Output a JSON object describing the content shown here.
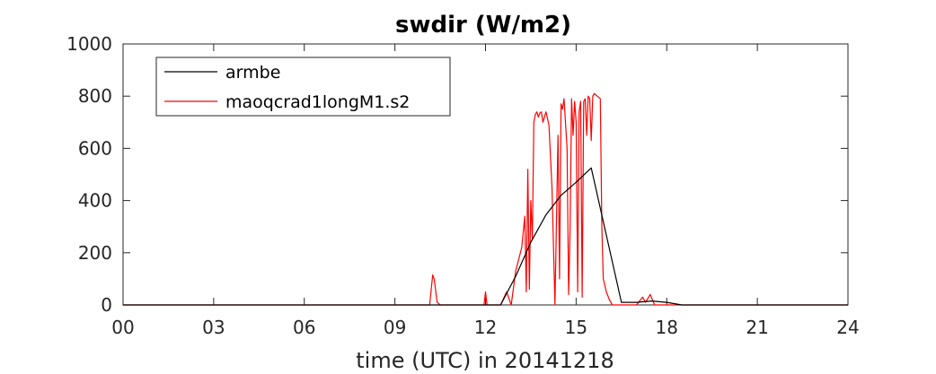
{
  "chart_data": {
    "type": "line",
    "title": "swdir  (W/m2)",
    "xlabel": "time (UTC) in 20141218",
    "ylabel": "",
    "xlim": [
      0,
      24
    ],
    "ylim": [
      0,
      1000
    ],
    "x_ticks": [
      0,
      3,
      6,
      9,
      12,
      15,
      18,
      21,
      24
    ],
    "x_tick_labels": [
      "00",
      "03",
      "06",
      "09",
      "12",
      "15",
      "18",
      "21",
      "24"
    ],
    "y_ticks": [
      0,
      200,
      400,
      600,
      800,
      1000
    ],
    "y_tick_labels": [
      "0",
      "200",
      "400",
      "600",
      "800",
      "1000"
    ],
    "grid": false,
    "legend": "top-left",
    "series": [
      {
        "name": "armbe",
        "color": "#000000",
        "x": [
          0,
          12.5,
          13.0,
          13.5,
          14.0,
          14.5,
          15.0,
          15.5,
          16.5,
          17.0,
          17.5,
          18.0,
          18.5,
          24
        ],
        "y": [
          0,
          0,
          110,
          240,
          345,
          420,
          470,
          525,
          10,
          10,
          15,
          10,
          0,
          0
        ]
      },
      {
        "name": "maoqcrad1longM1.s2",
        "color": "#ff0000",
        "x": [
          0,
          10.15,
          10.25,
          10.3,
          10.4,
          10.5,
          11.95,
          12.0,
          12.05,
          12.5,
          12.7,
          12.85,
          13.0,
          13.2,
          13.3,
          13.35,
          13.4,
          13.45,
          13.5,
          13.55,
          13.6,
          13.65,
          13.7,
          13.75,
          13.8,
          13.85,
          13.9,
          14.0,
          14.1,
          14.2,
          14.3,
          14.4,
          14.45,
          14.5,
          14.55,
          14.6,
          14.7,
          14.75,
          14.8,
          14.85,
          14.9,
          14.95,
          15.0,
          15.05,
          15.1,
          15.15,
          15.2,
          15.25,
          15.3,
          15.35,
          15.4,
          15.45,
          15.5,
          15.55,
          15.6,
          15.7,
          15.8,
          15.85,
          15.9,
          16.0,
          16.1,
          16.2,
          16.5,
          17.0,
          17.2,
          17.3,
          17.45,
          17.6,
          24
        ],
        "y": [
          0,
          0,
          115,
          100,
          10,
          0,
          0,
          50,
          0,
          0,
          50,
          0,
          130,
          220,
          340,
          50,
          520,
          60,
          400,
          250,
          700,
          730,
          740,
          720,
          735,
          740,
          700,
          740,
          690,
          450,
          0,
          650,
          100,
          770,
          750,
          790,
          600,
          40,
          300,
          790,
          650,
          780,
          700,
          50,
          740,
          780,
          30,
          780,
          790,
          650,
          800,
          790,
          630,
          800,
          810,
          800,
          790,
          300,
          100,
          50,
          20,
          0,
          0,
          0,
          30,
          10,
          40,
          0,
          0
        ]
      }
    ]
  }
}
